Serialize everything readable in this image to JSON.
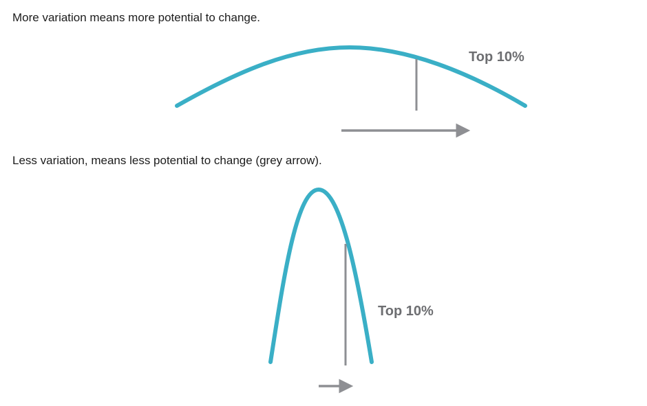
{
  "colors": {
    "curve": "#3aafc6",
    "marker": "#8e8f93",
    "label": "#6d6e71",
    "text": "#1c1c1c"
  },
  "top_diagram": {
    "caption": "More variation means more potential to change.",
    "curve_shape": "wide bell curve",
    "label": "Top 10%"
  },
  "bottom_diagram": {
    "caption": "Less variation, means less potential to change (grey arrow).",
    "curve_shape": "narrow bell curve",
    "label": "Top 10%"
  }
}
